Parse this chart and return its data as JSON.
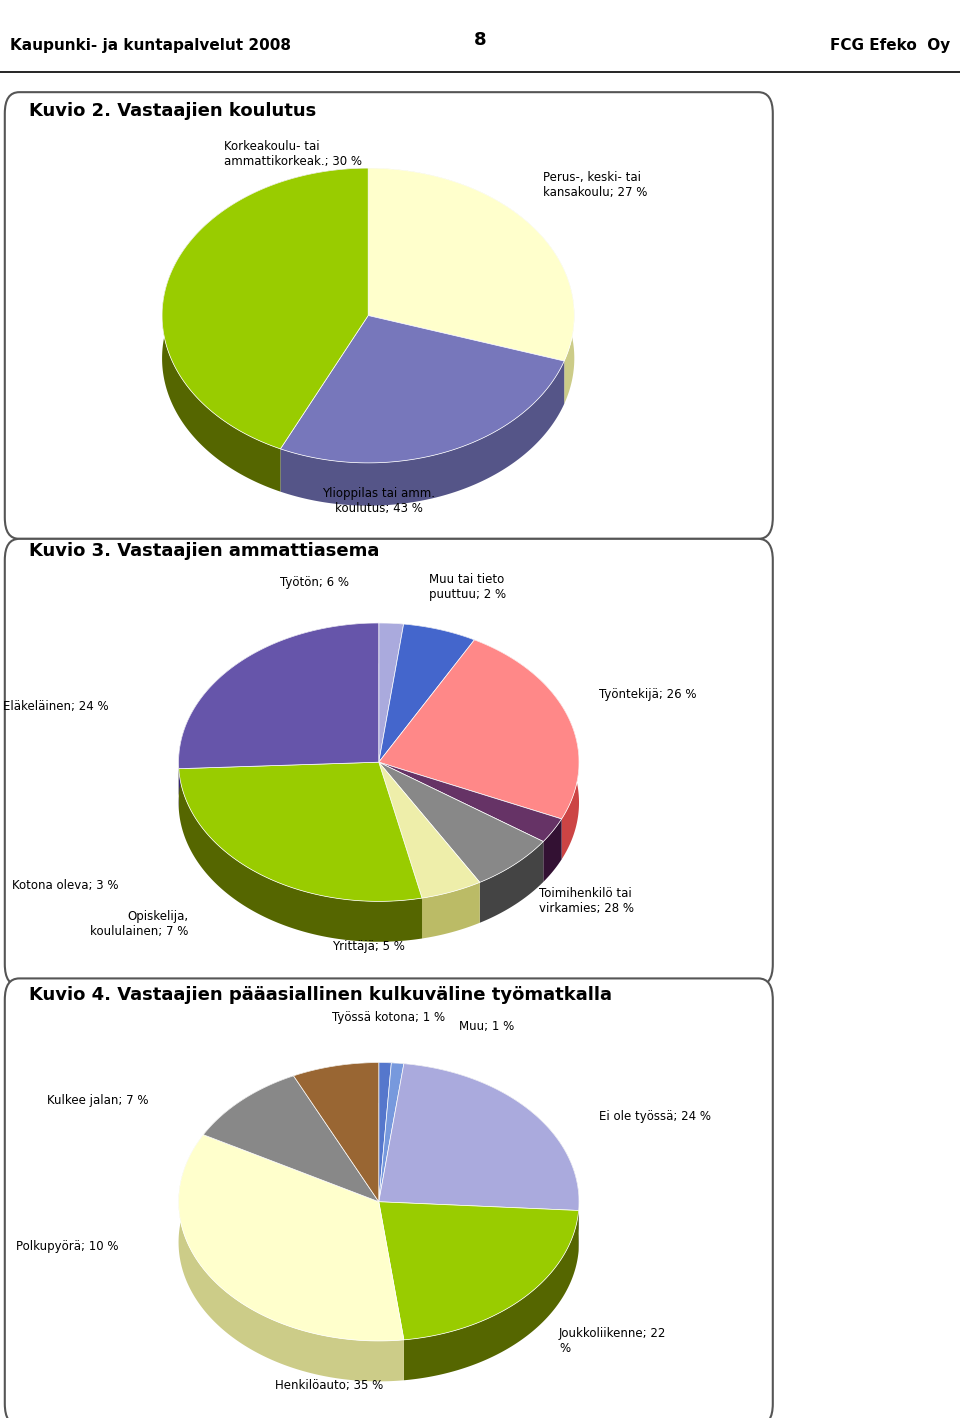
{
  "page_number": "8",
  "header_left": "Kaupunki- ja kuntapalvelut 2008",
  "header_right": "FCG Efeko  Oy",
  "chart1_title": "Kuvio 2. Vastaajien koulutus",
  "chart1_labels": [
    "Korkeakoulu- tai\nammattikorkeak.; 30 %",
    "Perus-, keski- tai\nkansakoulu; 27 %",
    "Ylioppilas tai amm.\nkoulutus; 43 %"
  ],
  "chart1_values": [
    30,
    27,
    43
  ],
  "chart1_colors": [
    "#FFFFCC",
    "#7777BB",
    "#99CC00"
  ],
  "chart1_dark_colors": [
    "#CCCC88",
    "#555588",
    "#556600"
  ],
  "chart1_startangle": 90,
  "chart2_title": "Kuvio 3. Vastaajien ammattiasema",
  "chart2_labels": [
    "Muu tai tieto\npuuttuu; 2 %",
    "Työtön; 6 %",
    "Eläkeläinen; 24 %",
    "Kotona oleva; 3 %",
    "Opiskelija,\nkoululainen; 7 %",
    "Yrittäjä; 5 %",
    "Toimihenkilö tai\nvirkamies; 28 %",
    "Työntekijä; 26 %"
  ],
  "chart2_values": [
    2,
    6,
    24,
    3,
    7,
    5,
    28,
    26
  ],
  "chart2_colors": [
    "#AAAADD",
    "#4466CC",
    "#FF8888",
    "#663366",
    "#888888",
    "#EEEEAA",
    "#99CC00",
    "#6655AA"
  ],
  "chart2_dark_colors": [
    "#7777AA",
    "#223388",
    "#CC4444",
    "#331133",
    "#444444",
    "#BBBB66",
    "#556600",
    "#332277"
  ],
  "chart2_startangle": 90,
  "chart3_title": "Kuvio 4. Vastaajien pääasiallinen kulkuväline työmatkalla",
  "chart3_labels": [
    "Työssä kotona; 1 %",
    "Muu; 1 %",
    "Ei ole työssä; 24 %",
    "Joukkoliikenne; 22\n%",
    "Henkilöauto; 35 %",
    "Polkupyörä; 10 %",
    "Kulkee jalan; 7 %"
  ],
  "chart3_values": [
    1,
    1,
    24,
    22,
    35,
    10,
    7
  ],
  "chart3_colors": [
    "#5577CC",
    "#7799DD",
    "#AAAADD",
    "#99CC00",
    "#FFFFCC",
    "#888888",
    "#996633"
  ],
  "chart3_dark_colors": [
    "#223388",
    "#334477",
    "#666688",
    "#556600",
    "#CCCC88",
    "#444444",
    "#664411"
  ],
  "chart3_startangle": 90
}
